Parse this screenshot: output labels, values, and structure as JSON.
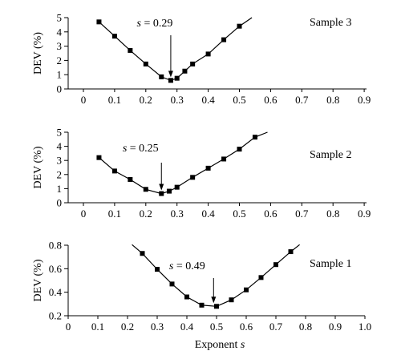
{
  "chart_data": [
    {
      "type": "line",
      "panel_label": "Sample 3",
      "annotation": {
        "text": "s = 0.29",
        "x": 0.28,
        "y": 0.6
      },
      "ylabel": "DEV (%)",
      "xlabel": "",
      "xlim": [
        -0.05,
        0.9
      ],
      "ylim": [
        0,
        5
      ],
      "x_ticks": [
        "0",
        "0.1",
        "0.2",
        "0.3",
        "0.4",
        "0.5",
        "0.6",
        "0.7",
        "0.8",
        "0.9"
      ],
      "y_ticks": [
        "0",
        "1",
        "2",
        "3",
        "4",
        "5"
      ],
      "line": {
        "x": [
          0.05,
          0.1,
          0.15,
          0.2,
          0.25,
          0.28,
          0.3,
          0.325,
          0.35,
          0.4,
          0.45,
          0.5,
          0.54
        ],
        "y": [
          4.7,
          3.7,
          2.7,
          1.75,
          0.85,
          0.6,
          0.75,
          1.25,
          1.75,
          2.45,
          3.45,
          4.4,
          5.0
        ]
      },
      "markers": {
        "x": [
          0.05,
          0.1,
          0.15,
          0.2,
          0.25,
          0.28,
          0.3,
          0.325,
          0.35,
          0.4,
          0.45,
          0.5
        ],
        "y": [
          4.7,
          3.7,
          2.7,
          1.75,
          0.85,
          0.6,
          0.75,
          1.25,
          1.75,
          2.45,
          3.45,
          4.4
        ]
      }
    },
    {
      "type": "line",
      "panel_label": "Sample 2",
      "annotation": {
        "text": "s = 0.25",
        "x": 0.25,
        "y": 0.65
      },
      "ylabel": "DEV (%)",
      "xlabel": "",
      "xlim": [
        -0.05,
        0.9
      ],
      "ylim": [
        0,
        5
      ],
      "x_ticks": [
        "0",
        "0.1",
        "0.2",
        "0.3",
        "0.4",
        "0.5",
        "0.6",
        "0.7",
        "0.8",
        "0.9"
      ],
      "y_ticks": [
        "0",
        "1",
        "2",
        "3",
        "4",
        "5"
      ],
      "line": {
        "x": [
          0.05,
          0.1,
          0.15,
          0.2,
          0.25,
          0.275,
          0.3,
          0.35,
          0.4,
          0.45,
          0.5,
          0.55,
          0.59
        ],
        "y": [
          3.2,
          2.25,
          1.65,
          0.95,
          0.65,
          0.82,
          1.1,
          1.8,
          2.45,
          3.1,
          3.8,
          4.65,
          5.0
        ]
      },
      "markers": {
        "x": [
          0.05,
          0.1,
          0.15,
          0.2,
          0.25,
          0.275,
          0.3,
          0.35,
          0.4,
          0.45,
          0.5,
          0.55
        ],
        "y": [
          3.2,
          2.25,
          1.65,
          0.95,
          0.65,
          0.82,
          1.1,
          1.8,
          2.45,
          3.1,
          3.8,
          4.65
        ]
      }
    },
    {
      "type": "line",
      "panel_label": "Sample 1",
      "annotation": {
        "text": "s = 0.49",
        "x": 0.49,
        "y": 0.28
      },
      "ylabel": "DEV (%)",
      "xlabel": "Exponent s",
      "xlim": [
        0,
        1.0
      ],
      "ylim": [
        0.2,
        0.8
      ],
      "x_ticks": [
        "0",
        "0.1",
        "0.2",
        "0.3",
        "0.4",
        "0.5",
        "0.6",
        "0.7",
        "0.8",
        "0.9",
        "1.0"
      ],
      "y_ticks": [
        "0.2",
        "0.4",
        "0.6",
        "0.8"
      ],
      "line": {
        "x": [
          0.215,
          0.25,
          0.3,
          0.35,
          0.4,
          0.45,
          0.5,
          0.55,
          0.6,
          0.65,
          0.7,
          0.75,
          0.78
        ],
        "y": [
          0.805,
          0.73,
          0.595,
          0.47,
          0.36,
          0.29,
          0.28,
          0.335,
          0.42,
          0.525,
          0.635,
          0.745,
          0.805
        ]
      },
      "markers": {
        "x": [
          0.25,
          0.3,
          0.35,
          0.4,
          0.45,
          0.5,
          0.55,
          0.6,
          0.65,
          0.7,
          0.75
        ],
        "y": [
          0.73,
          0.595,
          0.47,
          0.36,
          0.29,
          0.28,
          0.335,
          0.42,
          0.525,
          0.635,
          0.745
        ]
      }
    }
  ]
}
